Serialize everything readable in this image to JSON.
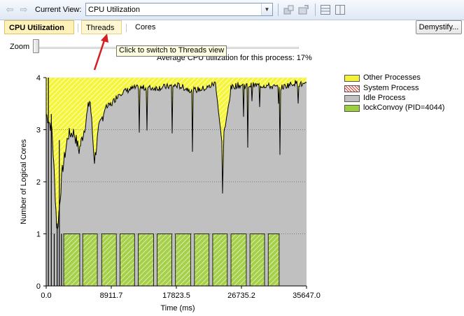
{
  "toolbar": {
    "back_icon": "back-arrow-icon",
    "forward_icon": "forward-arrow-icon",
    "current_view_label": "Current View:",
    "current_view_value": "CPU Utilization",
    "icons": [
      "zoom-tool-icon",
      "export-icon",
      "horizontal-split-icon",
      "vertical-split-icon"
    ]
  },
  "tabs": {
    "cpu_utilization": "CPU Utilization",
    "threads": "Threads",
    "cores": "Cores",
    "demystify": "Demystify..."
  },
  "zoom": {
    "label": "Zoom",
    "level": 0
  },
  "tooltip": "Click to switch to Threads view",
  "average_text": "Average CPU utilization for this process: 17%",
  "legend": [
    {
      "name": "Other Processes",
      "color": "#f2f23c"
    },
    {
      "name": "System Process",
      "color": "#e8322c"
    },
    {
      "name": "Idle Process",
      "color": "#c0c0c0"
    },
    {
      "name": "lockConvoy (PID=4044)",
      "color": "#9ccf3c"
    }
  ],
  "colors": {
    "other": "#f2f23c",
    "idle": "#c0c0c0",
    "process": "#9ccf3c",
    "arrow": "#d42020"
  },
  "chart_data": {
    "type": "area",
    "xlabel": "Time (ms)",
    "ylabel": "Number of Logical Cores",
    "xlim": [
      0,
      35647.0
    ],
    "ylim": [
      0,
      4
    ],
    "x_tick_labels": [
      "0.0",
      "8911.7",
      "17823.5",
      "26735.2",
      "35647.0"
    ],
    "y_tick_labels": [
      "0",
      "1",
      "2",
      "3",
      "4"
    ],
    "series": [
      {
        "name": "lockConvoy (PID=4044)",
        "note_values": "approx 1 core during bursts",
        "bursts_ms": [
          [
            2400,
            4600
          ],
          [
            5000,
            7000
          ],
          [
            7600,
            9600
          ],
          [
            10100,
            12100
          ],
          [
            12600,
            14700
          ],
          [
            15200,
            17200
          ],
          [
            17700,
            19800
          ],
          [
            20300,
            22300
          ],
          [
            22800,
            24800
          ],
          [
            25300,
            27400
          ],
          [
            27900,
            29900
          ],
          [
            30400,
            31900
          ]
        ],
        "value": 1
      },
      {
        "name": "Idle Process",
        "x": [
          0,
          800,
          1500,
          2200,
          3000,
          3800,
          4500,
          5200,
          6000,
          6600,
          7200,
          8000,
          9000,
          10000,
          12000,
          15000,
          18000,
          20000,
          22000,
          23200,
          24000,
          24600,
          25300,
          26000,
          28000,
          30000,
          32000,
          34000,
          35647
        ],
        "total": [
          3.3,
          3.0,
          1.0,
          2.2,
          2.9,
          2.95,
          2.6,
          3.0,
          3.6,
          2.4,
          3.0,
          3.4,
          3.5,
          3.7,
          3.8,
          3.8,
          3.85,
          3.75,
          3.8,
          3.9,
          2.8,
          3.1,
          3.8,
          3.85,
          3.85,
          3.85,
          3.8,
          3.9,
          3.85
        ]
      },
      {
        "name": "Other Processes",
        "values_note": "fills remaining capacity up to 4 cores",
        "value": 4
      }
    ]
  }
}
